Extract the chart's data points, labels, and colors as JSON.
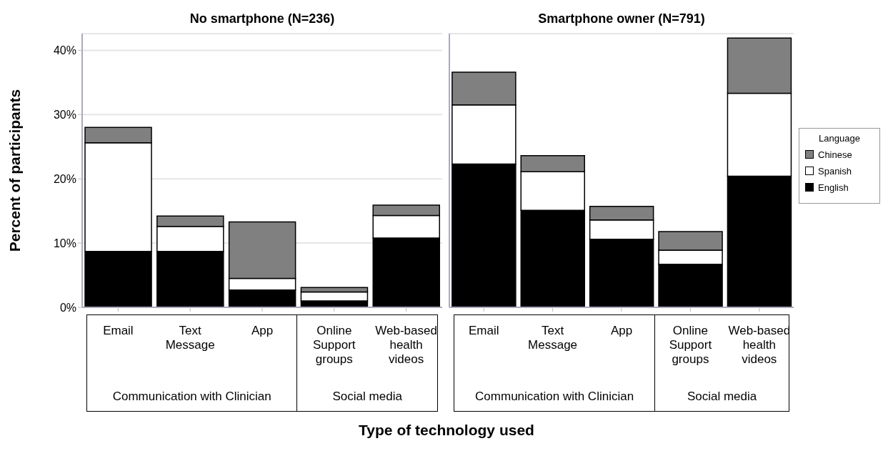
{
  "chart_data": [
    {
      "type": "bar",
      "title": "No smartphone (N=236)",
      "ylabel": "Percent of participants",
      "xlabel": "Type of technology used",
      "categories": [
        "Email",
        "Text Message",
        "App",
        "Online Support groups",
        "Web-based health videos"
      ],
      "annotations": [
        "Communication with Clinician",
        "Social media"
      ],
      "series": [
        {
          "color": "#000000",
          "values": [
            8.7,
            8.7,
            2.7,
            1.0,
            10.8
          ]
        },
        {
          "color": "#ffffff",
          "values": [
            16.9,
            3.9,
            1.8,
            1.4,
            3.5
          ]
        },
        {
          "color": "#808080",
          "values": [
            2.4,
            1.6,
            8.8,
            0.7,
            1.6
          ]
        }
      ],
      "stacked": true,
      "ylim": [
        0,
        42.6
      ],
      "yticks": [
        {
          "value": 0,
          "label": "0%"
        },
        {
          "value": 10,
          "label": "10%"
        },
        {
          "value": 20,
          "label": "20%"
        },
        {
          "value": 30,
          "label": "30%"
        },
        {
          "value": 40,
          "label": "40%"
        }
      ],
      "grid": "y",
      "legend": false
    },
    {
      "type": "bar",
      "title": "Smartphone owner (N=791)",
      "legend_title": "Language",
      "categories": [
        "Email",
        "Text Message",
        "App",
        "Online Support groups",
        "Web-based health videos"
      ],
      "annotations": [
        "Communication with Clinician",
        "Social media"
      ],
      "series": [
        {
          "name": "English",
          "color": "#000000",
          "values": [
            22.3,
            15.1,
            10.6,
            6.7,
            20.4
          ]
        },
        {
          "name": "Spanish",
          "color": "#ffffff",
          "values": [
            9.2,
            6.0,
            3.0,
            2.2,
            12.9
          ]
        },
        {
          "name": "Chinese",
          "color": "#808080",
          "values": [
            5.1,
            2.5,
            2.1,
            2.9,
            8.6
          ]
        }
      ],
      "stacked": true,
      "ylim": [
        0,
        42.6
      ],
      "yticks": [
        {
          "value": 0,
          "label": null
        },
        {
          "value": 10,
          "label": null
        },
        {
          "value": 20,
          "label": null
        },
        {
          "value": 30,
          "label": null
        },
        {
          "value": 40,
          "label": null
        }
      ],
      "grid": "y",
      "legend": "right",
      "tick_labels": "x"
    }
  ]
}
